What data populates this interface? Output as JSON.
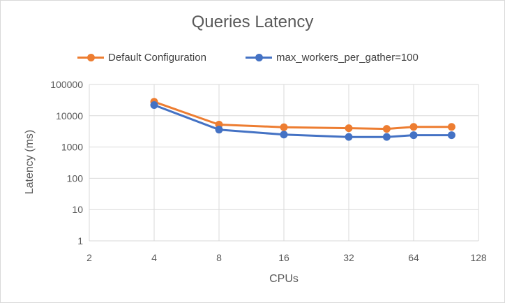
{
  "chart_data": {
    "type": "line",
    "title": "Queries Latency",
    "xlabel": "CPUs",
    "ylabel": "Latency (ms)",
    "xscale": "log2",
    "yscale": "log10",
    "xlim": [
      2,
      128
    ],
    "ylim": [
      1,
      100000
    ],
    "xticks": [
      "2",
      "4",
      "8",
      "16",
      "32",
      "64",
      "128"
    ],
    "yticks": [
      "1",
      "10",
      "100",
      "1000",
      "10000",
      "100000"
    ],
    "grid": true,
    "legend_position": "top",
    "x": [
      4,
      8,
      16,
      32,
      48,
      64,
      96
    ],
    "series": [
      {
        "name": "Default Configuration",
        "color": "#ed7d31",
        "values": [
          28000,
          5200,
          4300,
          4000,
          3800,
          4400,
          4400
        ]
      },
      {
        "name": "max_workers_per_gather=100",
        "color": "#4472c4",
        "values": [
          22000,
          3600,
          2500,
          2100,
          2100,
          2400,
          2400
        ]
      }
    ]
  }
}
